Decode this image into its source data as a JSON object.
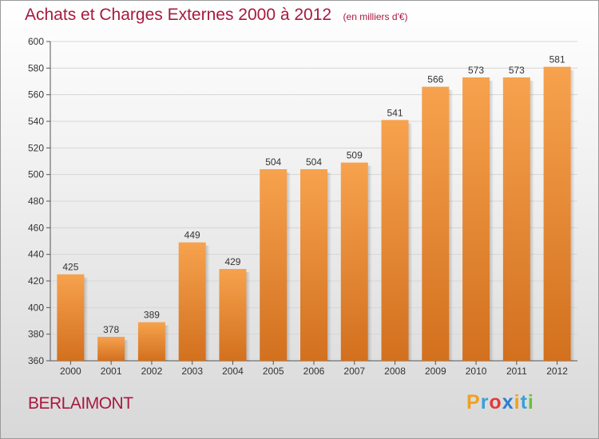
{
  "title": "Achats et Charges Externes 2000 à 2012",
  "unit": "(en milliers d'€)",
  "city": "BERLAIMONT",
  "logo": {
    "letters": [
      "P",
      "r",
      "o",
      "x",
      "i",
      "t",
      "i"
    ],
    "colors": [
      "#f0a020",
      "#3aa0d8",
      "#e23a3a",
      "#2a7fd0",
      "#f0a020",
      "#3aa0d8",
      "#6cbf3a"
    ]
  },
  "chart_data": {
    "type": "bar",
    "categories": [
      "2000",
      "2001",
      "2002",
      "2003",
      "2004",
      "2005",
      "2006",
      "2007",
      "2008",
      "2009",
      "2010",
      "2011",
      "2012"
    ],
    "values": [
      425,
      378,
      389,
      449,
      429,
      504,
      504,
      509,
      541,
      566,
      573,
      573,
      581
    ],
    "ylim": [
      360,
      600
    ],
    "yticks": [
      360,
      380,
      400,
      420,
      440,
      460,
      480,
      500,
      520,
      540,
      560,
      580,
      600
    ],
    "grid": "horizontal",
    "bar_color_top": "#f7a24e",
    "bar_color_bottom": "#d2701e"
  }
}
